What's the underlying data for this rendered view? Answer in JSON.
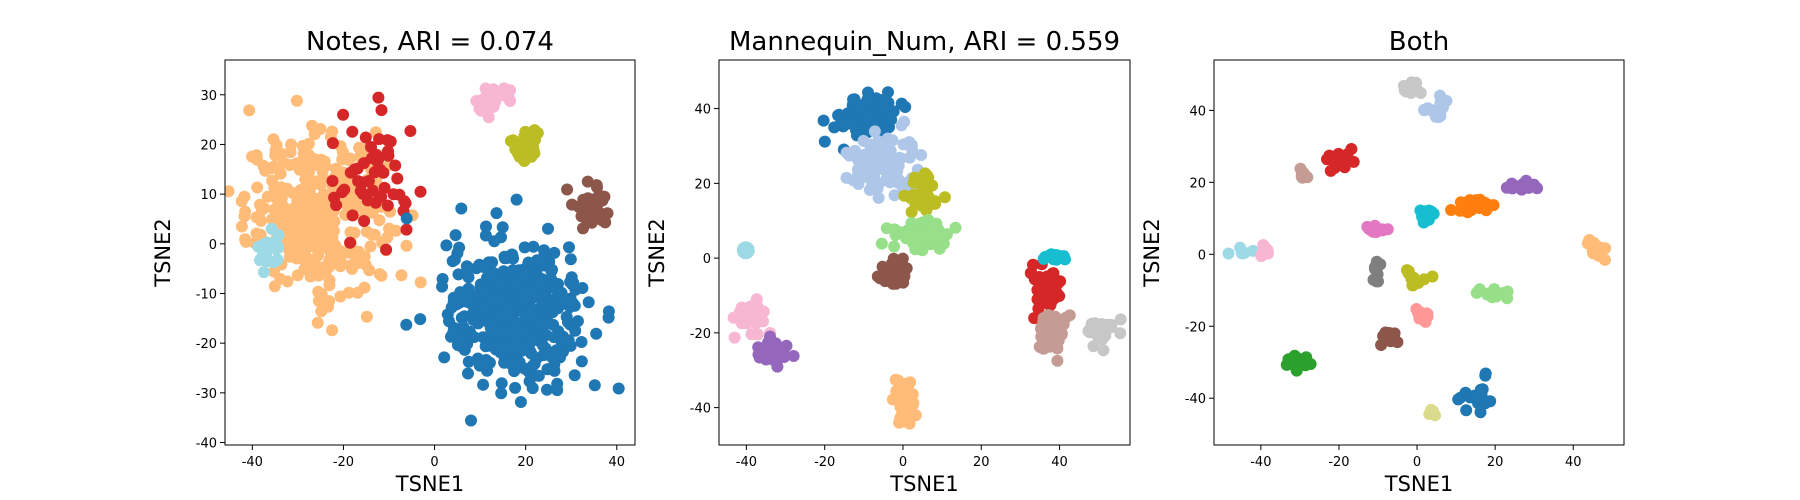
{
  "chart_data": [
    {
      "type": "scatter",
      "title": "Notes, ARI = 0.074",
      "xlabel": "TSNE1",
      "ylabel": "TSNE2",
      "xlim": [
        -46,
        44
      ],
      "ylim": [
        -40.5,
        37
      ],
      "xticks": [
        -40,
        -20,
        0,
        20,
        40
      ],
      "yticks": [
        -40,
        -30,
        -20,
        -10,
        0,
        10,
        20,
        30
      ],
      "clusters": [
        {
          "color": "#ffbb78",
          "cx": -26,
          "cy": 6,
          "sx": 9,
          "sy": 9,
          "n": 360
        },
        {
          "color": "#d62728",
          "cx": -14,
          "cy": 12,
          "sx": 6,
          "sy": 8,
          "n": 55
        },
        {
          "color": "#9edae5",
          "cx": -36,
          "cy": -1.5,
          "sx": 1.6,
          "sy": 2.2,
          "n": 22
        },
        {
          "color": "#f7b6d2",
          "cx": 12,
          "cy": 29,
          "sx": 2.0,
          "sy": 2.0,
          "n": 40
        },
        {
          "color": "#bcbd22",
          "cx": 20,
          "cy": 20,
          "sx": 1.8,
          "sy": 2.0,
          "n": 32
        },
        {
          "color": "#8c564b",
          "cx": 35,
          "cy": 8,
          "sx": 2.4,
          "sy": 2.6,
          "n": 38
        },
        {
          "color": "#1f77b4",
          "cx": 18,
          "cy": -14,
          "sx": 9,
          "sy": 8.5,
          "n": 420
        }
      ]
    },
    {
      "type": "scatter",
      "title": "Mannequin_Num, ARI = 0.559",
      "xlabel": "TSNE1",
      "ylabel": "TSNE2",
      "xlim": [
        -47,
        58
      ],
      "ylim": [
        -50,
        53
      ],
      "xticks": [
        -40,
        -20,
        0,
        20,
        40
      ],
      "yticks": [
        -40,
        -20,
        0,
        20,
        40
      ],
      "clusters": [
        {
          "color": "#1f77b4",
          "cx": -9,
          "cy": 38,
          "sx": 4,
          "sy": 3.5,
          "n": 110
        },
        {
          "color": "#aec7e8",
          "cx": -5,
          "cy": 25,
          "sx": 5,
          "sy": 5,
          "n": 110
        },
        {
          "color": "#bcbd22",
          "cx": 5,
          "cy": 17,
          "sx": 2.5,
          "sy": 3.5,
          "n": 40
        },
        {
          "color": "#98df8a",
          "cx": 5,
          "cy": 6,
          "sx": 4,
          "sy": 2.5,
          "n": 70
        },
        {
          "color": "#8c564b",
          "cx": -2,
          "cy": -4,
          "sx": 2.5,
          "sy": 1.8,
          "n": 45
        },
        {
          "color": "#9edae5",
          "cx": -40,
          "cy": 2.5,
          "sx": 0.2,
          "sy": 0.2,
          "n": 1,
          "big": true
        },
        {
          "color": "#f7b6d2",
          "cx": -39,
          "cy": -16,
          "sx": 3,
          "sy": 2.5,
          "n": 25
        },
        {
          "color": "#9467bd",
          "cx": -33,
          "cy": -25,
          "sx": 2.5,
          "sy": 1.5,
          "n": 35
        },
        {
          "color": "#ffbb78",
          "cx": 0,
          "cy": -38,
          "sx": 1.5,
          "sy": 3.5,
          "n": 60
        },
        {
          "color": "#d62728",
          "cx": 36,
          "cy": -8,
          "sx": 2.5,
          "sy": 3,
          "n": 50
        },
        {
          "color": "#17becf",
          "cx": 39,
          "cy": 0,
          "sx": 1.5,
          "sy": 0.8,
          "n": 18
        },
        {
          "color": "#c49c94",
          "cx": 38,
          "cy": -20,
          "sx": 2.5,
          "sy": 3,
          "n": 50
        },
        {
          "color": "#c7c7c7",
          "cx": 51,
          "cy": -20,
          "sx": 2,
          "sy": 2,
          "n": 35
        }
      ]
    },
    {
      "type": "scatter",
      "title": "Both",
      "xlabel": "TSNE1",
      "ylabel": "TSNE2",
      "xlim": [
        -52,
        53
      ],
      "ylim": [
        -53,
        54
      ],
      "xticks": [
        -40,
        -20,
        0,
        20,
        40
      ],
      "yticks": [
        -40,
        -20,
        0,
        20,
        40
      ],
      "clusters": [
        {
          "color": "#c7c7c7",
          "cx": -1,
          "cy": 46,
          "sx": 2,
          "sy": 1.5,
          "n": 18
        },
        {
          "color": "#aec7e8",
          "cx": 6,
          "cy": 41,
          "sx": 2.5,
          "sy": 1.8,
          "n": 20
        },
        {
          "color": "#d62728",
          "cx": -20,
          "cy": 26,
          "sx": 2,
          "sy": 1.5,
          "n": 20
        },
        {
          "color": "#c49c94",
          "cx": -29,
          "cy": 22,
          "sx": 0.8,
          "sy": 1.2,
          "n": 10
        },
        {
          "color": "#17becf",
          "cx": 2,
          "cy": 11,
          "sx": 1.2,
          "sy": 1.5,
          "n": 14
        },
        {
          "color": "#ff7f0e",
          "cx": 15,
          "cy": 13,
          "sx": 4,
          "sy": 1.4,
          "n": 25
        },
        {
          "color": "#9467bd",
          "cx": 27,
          "cy": 19,
          "sx": 2,
          "sy": 1,
          "n": 18
        },
        {
          "color": "#e377c2",
          "cx": -10,
          "cy": 6.5,
          "sx": 1.5,
          "sy": 1,
          "n": 12
        },
        {
          "color": "#9edae5",
          "cx": -45,
          "cy": 0.5,
          "sx": 2,
          "sy": 0.6,
          "n": 6
        },
        {
          "color": "#f7b6d2",
          "cx": -39,
          "cy": 1,
          "sx": 1,
          "sy": 0.8,
          "n": 12
        },
        {
          "color": "#7f7f7f",
          "cx": -11,
          "cy": -4,
          "sx": 1.2,
          "sy": 2.5,
          "n": 10
        },
        {
          "color": "#bcbd22",
          "cx": 1,
          "cy": -7,
          "sx": 3,
          "sy": 1.8,
          "n": 10
        },
        {
          "color": "#98df8a",
          "cx": 19,
          "cy": -11,
          "sx": 2.5,
          "sy": 0.8,
          "n": 16
        },
        {
          "color": "#ffbb78",
          "cx": 46,
          "cy": 1,
          "sx": 1.5,
          "sy": 1.8,
          "n": 16
        },
        {
          "color": "#ff9896",
          "cx": 1,
          "cy": -17,
          "sx": 1.5,
          "sy": 1.2,
          "n": 14
        },
        {
          "color": "#8c564b",
          "cx": -7,
          "cy": -24,
          "sx": 1.5,
          "sy": 1.8,
          "n": 12
        },
        {
          "color": "#2ca02c",
          "cx": -30,
          "cy": -30,
          "sx": 1.5,
          "sy": 1.2,
          "n": 20
        },
        {
          "color": "#1f77b4",
          "cx": 15,
          "cy": -39,
          "sx": 3.5,
          "sy": 3.5,
          "n": 20
        },
        {
          "color": "#dbdb8d",
          "cx": 4,
          "cy": -44,
          "sx": 0.8,
          "sy": 0.6,
          "n": 6
        }
      ]
    }
  ]
}
